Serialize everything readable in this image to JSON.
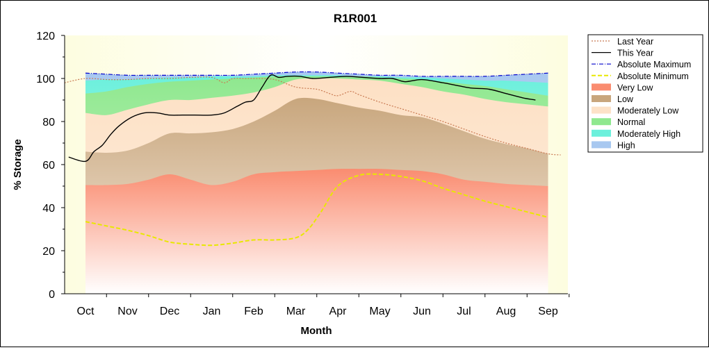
{
  "chart_data": {
    "type": "area",
    "title": "R1R001",
    "xlabel": "Month",
    "ylabel": "% Storage",
    "ylim": [
      0,
      120
    ],
    "yticks": [
      0,
      20,
      40,
      60,
      80,
      100,
      120
    ],
    "x_labels": [
      "Oct",
      "Nov",
      "Dec",
      "Jan",
      "Feb",
      "Mar",
      "Apr",
      "May",
      "Jun",
      "Jul",
      "Aug",
      "Sep"
    ],
    "legend_position": "right",
    "colors": {
      "plot_background": "#fdfde6",
      "very_low": "#fa8c70",
      "low": "#c8a67d",
      "moderately_low": "#fde2c8",
      "normal": "#8fe88f",
      "moderately_high": "#6cf0dc",
      "high": "#a8c8f0"
    },
    "bands_x": [
      0,
      0.5,
      1,
      1.5,
      2,
      2.5,
      3,
      3.5,
      4,
      4.5,
      5,
      5.5,
      6,
      6.5,
      7,
      7.5,
      8,
      8.5,
      9,
      9.5,
      10,
      10.5,
      11
    ],
    "bands": [
      {
        "name": "Very Low",
        "upper": [
          50.5,
          50.5,
          51,
          53,
          55.5,
          53,
          50.5,
          52,
          55.5,
          56.5,
          57,
          57.5,
          58,
          58,
          58,
          57.5,
          57,
          55.5,
          53,
          52,
          51,
          50.5,
          50
        ]
      },
      {
        "name": "Low",
        "upper": [
          66,
          65.5,
          66.5,
          70,
          74.5,
          74.5,
          75,
          76.5,
          80,
          85,
          90.5,
          90.5,
          88.5,
          86.5,
          85,
          83,
          82,
          79,
          75.5,
          72,
          69.5,
          67.5,
          65
        ]
      },
      {
        "name": "Moderately Low",
        "upper": [
          84,
          83,
          85.5,
          88,
          90,
          90,
          91,
          92,
          93.5,
          96,
          99.5,
          100,
          100,
          99.5,
          99,
          97.5,
          96,
          94,
          92.5,
          90.5,
          89,
          88,
          87
        ]
      },
      {
        "name": "Normal",
        "upper": [
          93,
          94,
          96,
          97.5,
          98.5,
          99,
          99.5,
          100,
          100.5,
          101,
          101,
          101,
          101,
          101,
          100.5,
          100,
          99.5,
          98.5,
          97.5,
          96.5,
          95,
          93.5,
          92
        ]
      },
      {
        "name": "Moderately High",
        "upper": [
          99,
          99.5,
          99.5,
          100,
          100.5,
          100.5,
          101,
          101,
          101,
          101.5,
          101.5,
          101.5,
          101.5,
          101,
          101,
          100.5,
          100.5,
          100,
          99.5,
          99,
          99,
          98.5,
          98
        ]
      },
      {
        "name": "High",
        "upper": [
          102.5,
          102,
          101.5,
          101.5,
          101.5,
          101.5,
          101.5,
          101.5,
          102,
          102.5,
          103,
          103,
          102.5,
          102,
          101.5,
          101.5,
          101,
          101,
          101,
          101,
          101.5,
          102,
          102.5
        ]
      }
    ],
    "series": [
      {
        "name": "Last Year",
        "color": "#c87850",
        "style": "dotted",
        "x": [
          -0.5,
          0,
          0.5,
          1,
          1.5,
          2,
          2.5,
          3,
          3.3,
          3.5,
          3.8,
          4,
          4.5,
          5,
          5.5,
          5.8,
          6,
          6.3,
          6.5,
          7,
          7.5,
          8,
          8.5,
          9,
          9.5,
          10,
          10.5,
          11,
          11.3
        ],
        "y": [
          98,
          100,
          99.5,
          99.5,
          100,
          100,
          100.5,
          100.5,
          98,
          100,
          100,
          100,
          99.5,
          96,
          95,
          93,
          92,
          94,
          92.5,
          89,
          86,
          83,
          80,
          76.5,
          73,
          70,
          67.5,
          65,
          64.5
        ]
      },
      {
        "name": "This Year",
        "color": "#000000",
        "style": "solid",
        "x": [
          -0.4,
          0,
          0.2,
          0.4,
          0.6,
          0.8,
          1.1,
          1.4,
          1.7,
          2,
          2.3,
          2.6,
          3,
          3.3,
          3.6,
          3.8,
          4,
          4.2,
          4.4,
          4.6,
          4.8,
          5.1,
          5.4,
          5.8,
          6.2,
          6.6,
          7,
          7.3,
          7.6,
          8,
          8.5,
          8.9,
          9.2,
          9.6,
          10,
          10.4,
          10.7
        ],
        "y": [
          63.5,
          61.5,
          66,
          69,
          74,
          78,
          82,
          84,
          84,
          83,
          83,
          83,
          83,
          84,
          87,
          89,
          90,
          96,
          101.5,
          100.5,
          101,
          101,
          100,
          100.5,
          101,
          100.5,
          100,
          100,
          98.5,
          99.5,
          98,
          96.5,
          95.5,
          95,
          93,
          91,
          90
        ]
      },
      {
        "name": "Absolute Maximum",
        "color": "#0000cc",
        "style": "dashdot",
        "x": [
          0,
          0.5,
          1,
          1.5,
          2,
          2.5,
          3,
          3.5,
          4,
          4.5,
          5,
          5.5,
          6,
          6.5,
          7,
          7.5,
          8,
          8.5,
          9,
          9.5,
          10,
          10.5,
          11
        ],
        "y": [
          102.5,
          102,
          101.5,
          101.5,
          101.5,
          101.5,
          101.5,
          101.5,
          102,
          102.5,
          103,
          103,
          102.5,
          102,
          101.5,
          101.5,
          101,
          101,
          101,
          101,
          101.5,
          102,
          102.5
        ]
      },
      {
        "name": "Absolute Minimum",
        "color": "#e8e800",
        "style": "dashed",
        "x": [
          0,
          0.5,
          1,
          1.5,
          2,
          2.5,
          3,
          3.5,
          4,
          4.5,
          5,
          5.3,
          5.6,
          6,
          6.5,
          7,
          7.5,
          8,
          8.5,
          9,
          9.5,
          10,
          10.5,
          11
        ],
        "y": [
          33.5,
          31.5,
          29.5,
          27,
          24,
          23,
          22.5,
          23.5,
          25,
          25,
          26,
          30,
          38,
          50,
          55,
          55.5,
          54.5,
          52.5,
          49,
          46,
          43,
          40.5,
          38,
          35.5
        ]
      }
    ],
    "legend": [
      "Last Year",
      "This Year",
      "Absolute Maximum",
      "Absolute Minimum",
      "Very Low",
      "Low",
      "Moderately Low",
      "Normal",
      "Moderately High",
      "High"
    ]
  }
}
